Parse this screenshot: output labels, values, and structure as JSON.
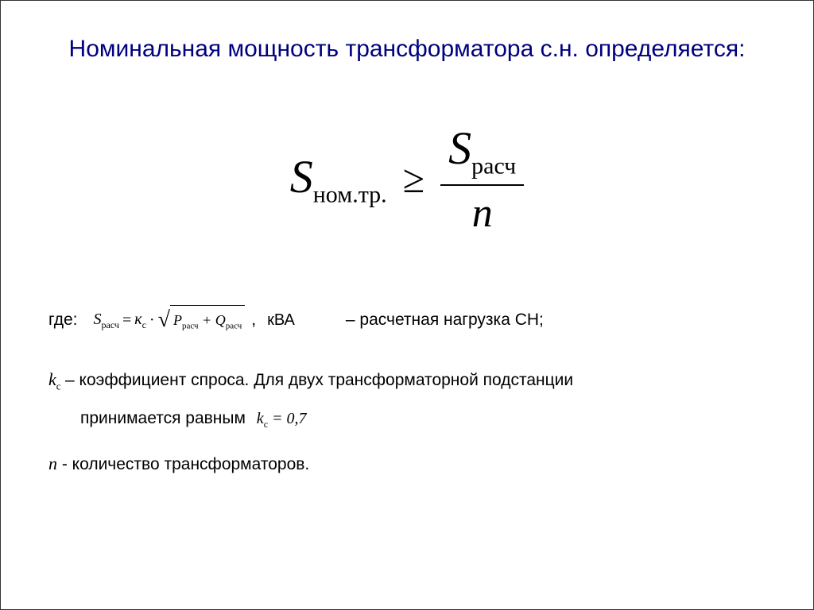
{
  "title": "Номинальная мощность трансформатора с.н. определяется:",
  "formula": {
    "lhs_var": "S",
    "lhs_sub": "ном.тр.",
    "operator": "≥",
    "rhs_num_var": "S",
    "rhs_num_sub": "расч",
    "rhs_den": "n"
  },
  "definitions": {
    "where": "где:",
    "srasch": {
      "var": "S",
      "var_sub": "расч",
      "eq": "=",
      "kc_var": "к",
      "kc_sub": "с",
      "dot": "·",
      "p_var": "P",
      "p_sub": "расч",
      "plus": "+",
      "q_var": "Q",
      "q_sub": "расч",
      "comma": ",",
      "unit": "кВА",
      "desc": "– расчетная нагрузка СН;"
    },
    "kc": {
      "var": "k",
      "var_sub": "с",
      "desc1": " – коэффициент спроса. Для двух трансформаторной подстанции",
      "desc2": "принимается равным",
      "value_var": "k",
      "value_sub": "с",
      "value_eq": " = 0,7"
    },
    "n": {
      "var": "n",
      "desc": " - количество трансформаторов."
    }
  },
  "colors": {
    "title": "#000080",
    "text": "#000000",
    "background": "#ffffff"
  },
  "typography": {
    "title_fontsize": 30,
    "formula_fontsize": 58,
    "body_fontsize": 21,
    "title_font": "Arial",
    "formula_font": "Times New Roman"
  }
}
